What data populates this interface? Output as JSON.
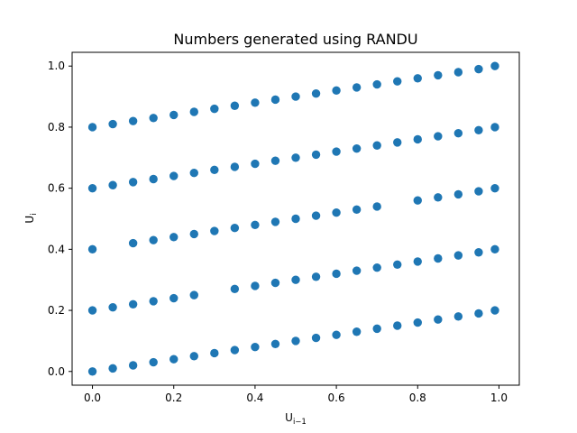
{
  "chart_data": {
    "type": "scatter",
    "title": "Numbers generated using RANDU",
    "xlabel": {
      "main": "U",
      "sub": "i−1"
    },
    "ylabel": {
      "main": "U",
      "sub": "i"
    },
    "xlim": [
      -0.05,
      1.05
    ],
    "ylim": [
      -0.045,
      1.045
    ],
    "xticks": [
      0.0,
      0.2,
      0.4,
      0.6,
      0.8,
      1.0
    ],
    "xtick_labels": [
      "0.0",
      "0.2",
      "0.4",
      "0.6",
      "0.8",
      "1.0"
    ],
    "yticks": [
      0.0,
      0.2,
      0.4,
      0.6,
      0.8,
      1.0
    ],
    "ytick_labels": [
      "0.0",
      "0.2",
      "0.4",
      "0.6",
      "0.8",
      "1.0"
    ],
    "grid": false,
    "legend": "none",
    "marker_color": "#1f77b4",
    "series": [
      {
        "points": [
          {
            "x": 0.0,
            "y": 0.0
          },
          {
            "x": 0.05,
            "y": 0.01
          },
          {
            "x": 0.1,
            "y": 0.02
          },
          {
            "x": 0.15,
            "y": 0.03
          },
          {
            "x": 0.2,
            "y": 0.04
          },
          {
            "x": 0.25,
            "y": 0.05
          },
          {
            "x": 0.3,
            "y": 0.06
          },
          {
            "x": 0.35,
            "y": 0.07
          },
          {
            "x": 0.4,
            "y": 0.08
          },
          {
            "x": 0.45,
            "y": 0.09
          },
          {
            "x": 0.5,
            "y": 0.1
          },
          {
            "x": 0.55,
            "y": 0.11
          },
          {
            "x": 0.6,
            "y": 0.12
          },
          {
            "x": 0.65,
            "y": 0.13
          },
          {
            "x": 0.7,
            "y": 0.14
          },
          {
            "x": 0.75,
            "y": 0.15
          },
          {
            "x": 0.8,
            "y": 0.16
          },
          {
            "x": 0.85,
            "y": 0.17
          },
          {
            "x": 0.9,
            "y": 0.18
          },
          {
            "x": 0.95,
            "y": 0.19
          },
          {
            "x": 0.99,
            "y": 0.2
          },
          {
            "x": 0.0,
            "y": 0.2
          },
          {
            "x": 0.05,
            "y": 0.21
          },
          {
            "x": 0.1,
            "y": 0.22
          },
          {
            "x": 0.15,
            "y": 0.23
          },
          {
            "x": 0.2,
            "y": 0.24
          },
          {
            "x": 0.25,
            "y": 0.25
          },
          {
            "x": 0.35,
            "y": 0.27
          },
          {
            "x": 0.4,
            "y": 0.28
          },
          {
            "x": 0.45,
            "y": 0.29
          },
          {
            "x": 0.5,
            "y": 0.3
          },
          {
            "x": 0.55,
            "y": 0.31
          },
          {
            "x": 0.6,
            "y": 0.32
          },
          {
            "x": 0.65,
            "y": 0.33
          },
          {
            "x": 0.7,
            "y": 0.34
          },
          {
            "x": 0.75,
            "y": 0.35
          },
          {
            "x": 0.8,
            "y": 0.36
          },
          {
            "x": 0.85,
            "y": 0.37
          },
          {
            "x": 0.9,
            "y": 0.38
          },
          {
            "x": 0.95,
            "y": 0.39
          },
          {
            "x": 0.99,
            "y": 0.4
          },
          {
            "x": 0.0,
            "y": 0.4
          },
          {
            "x": 0.1,
            "y": 0.42
          },
          {
            "x": 0.15,
            "y": 0.43
          },
          {
            "x": 0.2,
            "y": 0.44
          },
          {
            "x": 0.25,
            "y": 0.45
          },
          {
            "x": 0.3,
            "y": 0.46
          },
          {
            "x": 0.35,
            "y": 0.47
          },
          {
            "x": 0.4,
            "y": 0.48
          },
          {
            "x": 0.45,
            "y": 0.49
          },
          {
            "x": 0.5,
            "y": 0.5
          },
          {
            "x": 0.55,
            "y": 0.51
          },
          {
            "x": 0.6,
            "y": 0.52
          },
          {
            "x": 0.65,
            "y": 0.53
          },
          {
            "x": 0.7,
            "y": 0.54
          },
          {
            "x": 0.8,
            "y": 0.56
          },
          {
            "x": 0.85,
            "y": 0.57
          },
          {
            "x": 0.9,
            "y": 0.58
          },
          {
            "x": 0.95,
            "y": 0.59
          },
          {
            "x": 0.99,
            "y": 0.6
          },
          {
            "x": 0.0,
            "y": 0.6
          },
          {
            "x": 0.05,
            "y": 0.61
          },
          {
            "x": 0.1,
            "y": 0.62
          },
          {
            "x": 0.15,
            "y": 0.63
          },
          {
            "x": 0.2,
            "y": 0.64
          },
          {
            "x": 0.25,
            "y": 0.65
          },
          {
            "x": 0.3,
            "y": 0.66
          },
          {
            "x": 0.35,
            "y": 0.67
          },
          {
            "x": 0.4,
            "y": 0.68
          },
          {
            "x": 0.45,
            "y": 0.69
          },
          {
            "x": 0.5,
            "y": 0.7
          },
          {
            "x": 0.55,
            "y": 0.71
          },
          {
            "x": 0.6,
            "y": 0.72
          },
          {
            "x": 0.65,
            "y": 0.73
          },
          {
            "x": 0.7,
            "y": 0.74
          },
          {
            "x": 0.75,
            "y": 0.75
          },
          {
            "x": 0.8,
            "y": 0.76
          },
          {
            "x": 0.85,
            "y": 0.77
          },
          {
            "x": 0.9,
            "y": 0.78
          },
          {
            "x": 0.95,
            "y": 0.79
          },
          {
            "x": 0.99,
            "y": 0.8
          },
          {
            "x": 0.0,
            "y": 0.8
          },
          {
            "x": 0.05,
            "y": 0.81
          },
          {
            "x": 0.1,
            "y": 0.82
          },
          {
            "x": 0.15,
            "y": 0.83
          },
          {
            "x": 0.2,
            "y": 0.84
          },
          {
            "x": 0.25,
            "y": 0.85
          },
          {
            "x": 0.3,
            "y": 0.86
          },
          {
            "x": 0.35,
            "y": 0.87
          },
          {
            "x": 0.4,
            "y": 0.88
          },
          {
            "x": 0.45,
            "y": 0.89
          },
          {
            "x": 0.5,
            "y": 0.9
          },
          {
            "x": 0.55,
            "y": 0.91
          },
          {
            "x": 0.6,
            "y": 0.92
          },
          {
            "x": 0.65,
            "y": 0.93
          },
          {
            "x": 0.7,
            "y": 0.94
          },
          {
            "x": 0.75,
            "y": 0.95
          },
          {
            "x": 0.8,
            "y": 0.96
          },
          {
            "x": 0.85,
            "y": 0.97
          },
          {
            "x": 0.9,
            "y": 0.98
          },
          {
            "x": 0.95,
            "y": 0.99
          },
          {
            "x": 0.99,
            "y": 1.0
          }
        ]
      }
    ]
  }
}
